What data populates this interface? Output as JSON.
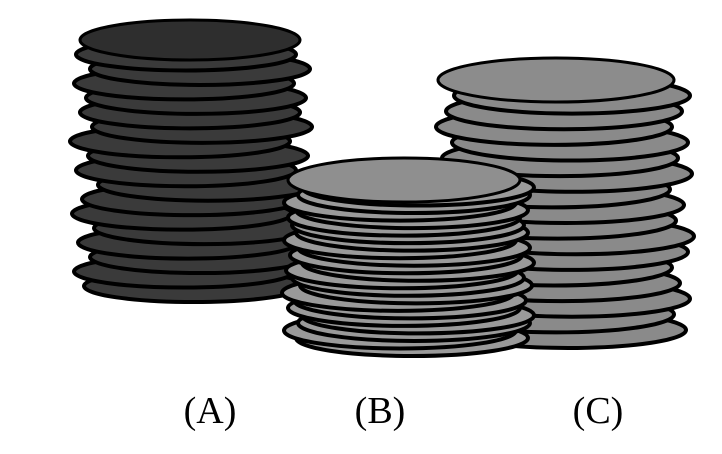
{
  "stacks": [
    {
      "label": "(A)",
      "coins": 18,
      "fill": "#3a3a3a",
      "top_fill": "#2e2e2e"
    },
    {
      "label": "(B)",
      "coins": 17,
      "fill": "#8a8a8a",
      "top_fill": "#8c8c8c"
    },
    {
      "label": "(C)",
      "coins": 22,
      "fill": "#9a9a9a",
      "top_fill": "#8f8f8f"
    }
  ],
  "colors": {
    "outline": "#000000",
    "background": "#ffffff"
  }
}
